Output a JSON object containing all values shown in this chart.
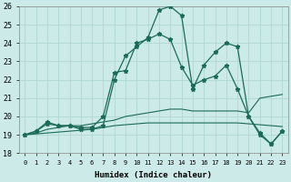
{
  "xlabel": "Humidex (Indice chaleur)",
  "x_labels": [
    "0",
    "1",
    "2",
    "3",
    "4",
    "5",
    "6",
    "7",
    "8",
    "9",
    "10",
    "11",
    "12",
    "13",
    "14",
    "15",
    "16",
    "17",
    "18",
    "19",
    "20",
    "21",
    "22",
    "23"
  ],
  "ylim": [
    18,
    26
  ],
  "yticks": [
    18,
    19,
    20,
    21,
    22,
    23,
    24,
    25,
    26
  ],
  "bg_color": "#cceae7",
  "grid_color": "#aad4d0",
  "line_color": "#1a6b5a",
  "series1": [
    19.0,
    19.2,
    19.6,
    19.5,
    19.5,
    19.3,
    19.3,
    19.5,
    22.0,
    23.3,
    23.8,
    24.3,
    25.8,
    26.0,
    25.5,
    21.5,
    22.8,
    23.5,
    24.0,
    23.8,
    20.0,
    19.1,
    18.5,
    19.2
  ],
  "series2": [
    19.0,
    19.2,
    19.7,
    19.5,
    19.5,
    19.4,
    19.4,
    20.0,
    22.4,
    22.5,
    24.0,
    24.2,
    24.5,
    24.2,
    22.7,
    21.7,
    22.0,
    22.2,
    22.8,
    21.5,
    20.0,
    19.0,
    18.5,
    19.2
  ],
  "series3": [
    19.0,
    19.1,
    19.3,
    19.4,
    19.5,
    19.5,
    19.6,
    19.7,
    19.8,
    20.0,
    20.1,
    20.2,
    20.3,
    20.4,
    20.4,
    20.3,
    20.3,
    20.3,
    20.3,
    20.3,
    20.2,
    21.0,
    21.1,
    21.2
  ],
  "series4": [
    19.0,
    19.05,
    19.1,
    19.15,
    19.2,
    19.25,
    19.3,
    19.4,
    19.5,
    19.55,
    19.6,
    19.65,
    19.65,
    19.65,
    19.65,
    19.65,
    19.65,
    19.65,
    19.65,
    19.65,
    19.6,
    19.55,
    19.5,
    19.45
  ]
}
